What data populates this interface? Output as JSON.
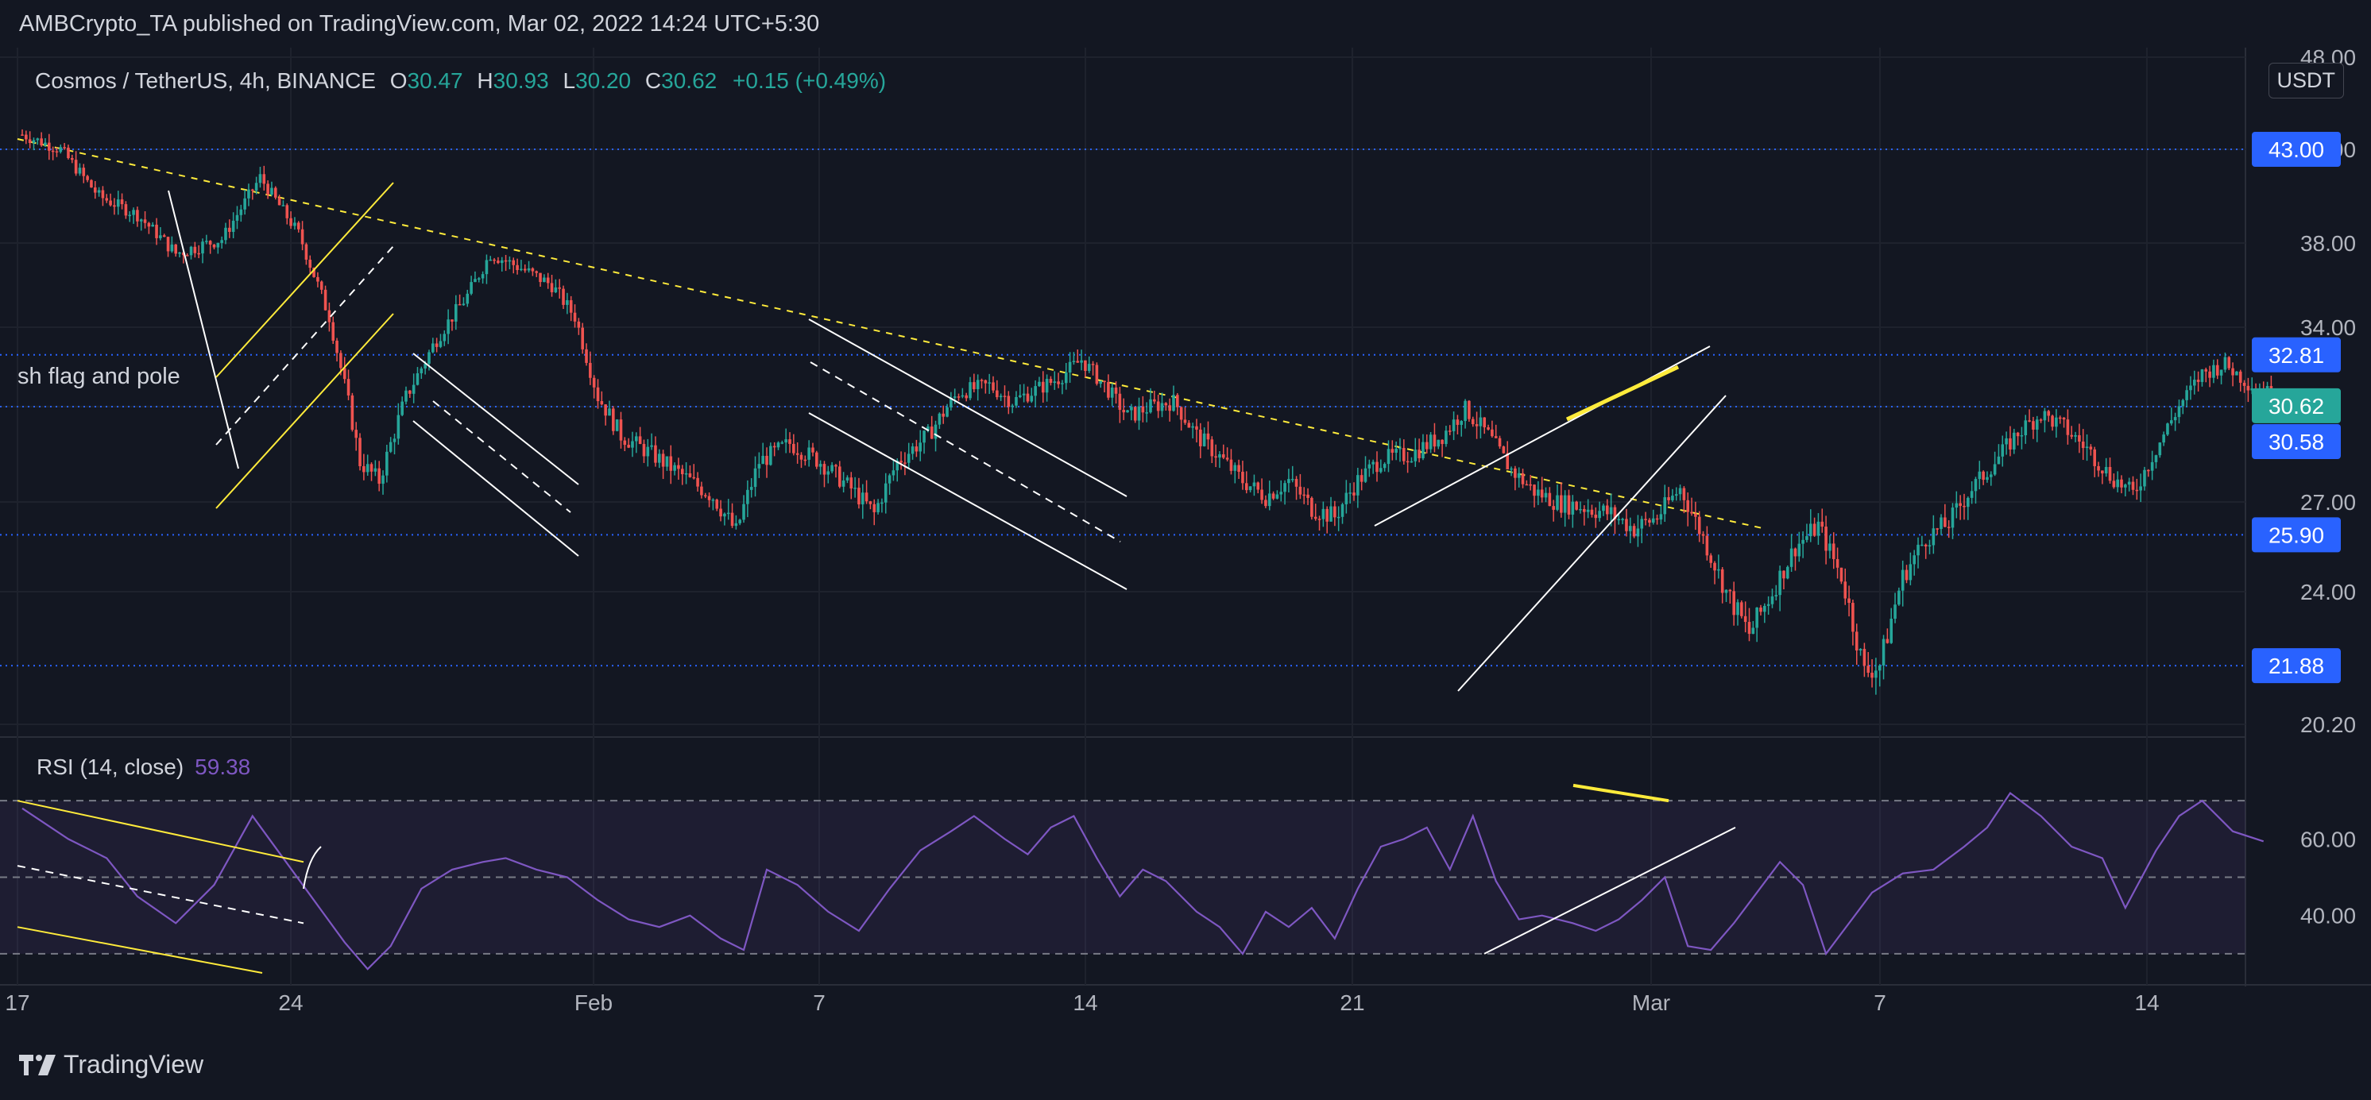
{
  "header": {
    "publisher_line": "AMBCrypto_TA published on TradingView.com, Mar 02, 2022 14:24 UTC+5:30"
  },
  "legend": {
    "symbol": "Cosmos / TetherUS, 4h, BINANCE",
    "open_label": "O",
    "open": "30.47",
    "high_label": "H",
    "high": "30.93",
    "low_label": "L",
    "low": "30.20",
    "close_label": "C",
    "close": "30.62",
    "change": "+0.15 (+0.49%)"
  },
  "rsi_legend": {
    "label": "RSI (14, close)",
    "value": "59.38"
  },
  "pattern_label": "sh flag and pole",
  "unit_button": "USDT",
  "brand": {
    "name": "TradingView"
  },
  "colors": {
    "background": "#131722",
    "up": "#26a69a",
    "down": "#ef5350",
    "level_line": "#2962ff",
    "trendline_yellow": "#ffeb3b",
    "rsi_line": "#7e57c2",
    "rsi_band": "#7e57c2"
  },
  "chart_data": [
    {
      "type": "candlestick",
      "title": "Cosmos / TetherUS, 4h, BINANCE",
      "y_axis_side": "right",
      "y_ticks": [
        "43.00",
        "38.00",
        "34.00",
        "30.58",
        "27.00",
        "24.00",
        "20.20"
      ],
      "x_ticks": [
        "17",
        "24",
        "Feb",
        "7",
        "14",
        "21",
        "Mar",
        "7",
        "14"
      ],
      "ylim": [
        19,
        48
      ],
      "horizontal_levels": [
        {
          "label": "43.00",
          "value": 43.0,
          "style": "dotted",
          "color": "#2962ff"
        },
        {
          "label": "32.81",
          "value": 32.81,
          "style": "dotted",
          "color": "#2962ff"
        },
        {
          "label": "30.58",
          "value": 30.58,
          "style": "dotted",
          "color": "#2962ff"
        },
        {
          "label": "25.90",
          "value": 25.9,
          "style": "dotted",
          "color": "#2962ff"
        },
        {
          "label": "21.88",
          "value": 21.88,
          "style": "dotted",
          "color": "#2962ff"
        }
      ],
      "last_price": {
        "label": "30.62",
        "value": 30.62,
        "color": "#26a69a"
      },
      "price_path": [
        [
          0,
          43.8
        ],
        [
          10,
          43.0
        ],
        [
          20,
          40.5
        ],
        [
          30,
          39.5
        ],
        [
          40,
          37.5
        ],
        [
          52,
          38.2
        ],
        [
          62,
          41.5
        ],
        [
          72,
          38.5
        ],
        [
          80,
          34.5
        ],
        [
          88,
          28.5
        ],
        [
          93,
          27.8
        ],
        [
          100,
          31.0
        ],
        [
          108,
          33.5
        ],
        [
          116,
          35.5
        ],
        [
          122,
          37.5
        ],
        [
          130,
          36.8
        ],
        [
          138,
          36.0
        ],
        [
          144,
          34.5
        ],
        [
          150,
          31.0
        ],
        [
          156,
          29.5
        ],
        [
          164,
          28.8
        ],
        [
          172,
          28.0
        ],
        [
          180,
          27.2
        ],
        [
          186,
          26.0
        ],
        [
          192,
          28.5
        ],
        [
          200,
          29.2
        ],
        [
          208,
          28.5
        ],
        [
          216,
          27.5
        ],
        [
          222,
          26.6
        ],
        [
          228,
          28.5
        ],
        [
          236,
          29.5
        ],
        [
          244,
          31.2
        ],
        [
          252,
          31.5
        ],
        [
          258,
          30.8
        ],
        [
          264,
          31.3
        ],
        [
          270,
          31.8
        ],
        [
          276,
          32.6
        ],
        [
          282,
          31.5
        ],
        [
          288,
          30.2
        ],
        [
          294,
          30.6
        ],
        [
          300,
          30.8
        ],
        [
          306,
          29.5
        ],
        [
          312,
          28.7
        ],
        [
          318,
          27.8
        ],
        [
          324,
          27.2
        ],
        [
          330,
          27.8
        ],
        [
          336,
          26.8
        ],
        [
          342,
          26.5
        ],
        [
          348,
          27.8
        ],
        [
          354,
          28.6
        ],
        [
          362,
          28.8
        ],
        [
          370,
          29.5
        ],
        [
          376,
          30.5
        ],
        [
          382,
          29.5
        ],
        [
          388,
          28.2
        ],
        [
          394,
          27.4
        ],
        [
          400,
          27.0
        ],
        [
          408,
          26.8
        ],
        [
          414,
          26.6
        ],
        [
          420,
          26.1
        ],
        [
          426,
          26.5
        ],
        [
          432,
          27.5
        ],
        [
          438,
          25.8
        ],
        [
          444,
          24.0
        ],
        [
          450,
          22.8
        ],
        [
          456,
          24.0
        ],
        [
          462,
          25.5
        ],
        [
          468,
          26.2
        ],
        [
          474,
          24.5
        ],
        [
          480,
          21.7
        ],
        [
          484,
          21.9
        ],
        [
          490,
          24.5
        ],
        [
          496,
          25.8
        ],
        [
          502,
          26.3
        ],
        [
          508,
          27.5
        ],
        [
          514,
          28.5
        ],
        [
          520,
          29.6
        ],
        [
          526,
          30.3
        ],
        [
          532,
          29.8
        ],
        [
          538,
          29.0
        ],
        [
          544,
          28.0
        ],
        [
          550,
          27.3
        ],
        [
          556,
          29.0
        ],
        [
          562,
          30.6
        ],
        [
          568,
          32.0
        ],
        [
          574,
          32.4
        ],
        [
          580,
          31.6
        ],
        [
          586,
          31.1
        ],
        [
          592,
          30.62
        ]
      ],
      "annotations": [
        {
          "kind": "label",
          "text": "sh flag and pole"
        },
        {
          "kind": "descending_trendline",
          "color": "yellow",
          "style": "dashed"
        },
        {
          "kind": "bear_flag_channel",
          "color": "yellow"
        },
        {
          "kind": "descending_channels",
          "count": 2,
          "color": "white"
        },
        {
          "kind": "rising_wedge",
          "color": "white"
        },
        {
          "kind": "bearish_divergence_line",
          "color": "yellow"
        }
      ]
    },
    {
      "type": "line",
      "title": "RSI (14, close)",
      "current_value": 59.38,
      "y_ticks": [
        "60.00",
        "40.00"
      ],
      "ylim": [
        25,
        80
      ],
      "band": {
        "upper": 70,
        "middle": 50,
        "lower": 30
      },
      "values": [
        [
          0,
          68
        ],
        [
          12,
          60
        ],
        [
          22,
          55
        ],
        [
          30,
          45
        ],
        [
          40,
          38
        ],
        [
          50,
          48
        ],
        [
          60,
          66
        ],
        [
          68,
          55
        ],
        [
          76,
          44
        ],
        [
          84,
          33
        ],
        [
          90,
          26
        ],
        [
          96,
          32
        ],
        [
          104,
          47
        ],
        [
          112,
          52
        ],
        [
          120,
          54
        ],
        [
          126,
          55
        ],
        [
          134,
          52
        ],
        [
          142,
          50
        ],
        [
          150,
          44
        ],
        [
          158,
          39
        ],
        [
          166,
          37
        ],
        [
          174,
          40
        ],
        [
          182,
          34
        ],
        [
          188,
          31
        ],
        [
          194,
          52
        ],
        [
          202,
          48
        ],
        [
          210,
          41
        ],
        [
          218,
          36
        ],
        [
          226,
          47
        ],
        [
          234,
          57
        ],
        [
          242,
          62
        ],
        [
          248,
          66
        ],
        [
          256,
          60
        ],
        [
          262,
          56
        ],
        [
          268,
          63
        ],
        [
          274,
          66
        ],
        [
          280,
          55
        ],
        [
          286,
          45
        ],
        [
          292,
          52
        ],
        [
          298,
          49
        ],
        [
          306,
          41
        ],
        [
          312,
          37
        ],
        [
          318,
          30
        ],
        [
          324,
          41
        ],
        [
          330,
          37
        ],
        [
          336,
          42
        ],
        [
          342,
          34
        ],
        [
          348,
          47
        ],
        [
          354,
          58
        ],
        [
          360,
          60
        ],
        [
          366,
          63
        ],
        [
          372,
          52
        ],
        [
          378,
          66
        ],
        [
          384,
          49
        ],
        [
          390,
          39
        ],
        [
          396,
          40
        ],
        [
          404,
          38
        ],
        [
          410,
          36
        ],
        [
          416,
          39
        ],
        [
          422,
          44
        ],
        [
          428,
          50
        ],
        [
          434,
          32
        ],
        [
          440,
          31
        ],
        [
          446,
          38
        ],
        [
          452,
          46
        ],
        [
          458,
          54
        ],
        [
          464,
          48
        ],
        [
          470,
          30
        ],
        [
          476,
          38
        ],
        [
          482,
          46
        ],
        [
          490,
          51
        ],
        [
          498,
          52
        ],
        [
          506,
          58
        ],
        [
          512,
          63
        ],
        [
          518,
          72
        ],
        [
          526,
          66
        ],
        [
          534,
          58
        ],
        [
          542,
          55
        ],
        [
          548,
          42
        ],
        [
          556,
          57
        ],
        [
          562,
          66
        ],
        [
          568,
          70
        ],
        [
          576,
          62
        ],
        [
          584,
          59.38
        ]
      ],
      "annotations": [
        {
          "kind": "descending_channel",
          "color": "yellow"
        },
        {
          "kind": "bearish_divergence_line",
          "color": "yellow"
        },
        {
          "kind": "ascending_support",
          "color": "white"
        }
      ]
    }
  ]
}
